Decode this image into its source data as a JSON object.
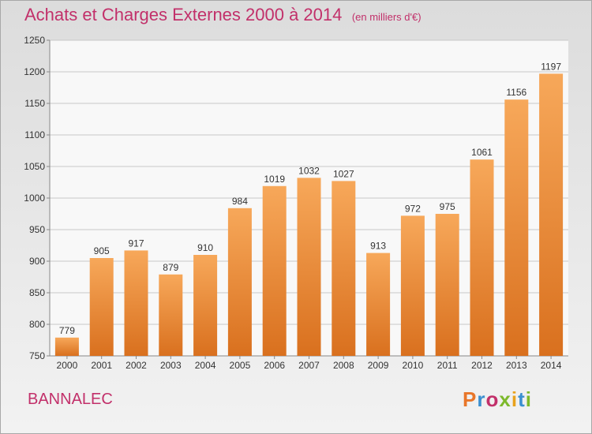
{
  "title": "Achats et Charges Externes 2000 à 2014",
  "subtitle": "(en milliers d'€)",
  "commune": "BANNALEC",
  "logo": {
    "text": "Proxiti",
    "colors": [
      "#e8762a",
      "#3a8fd0",
      "#c2306a",
      "#7db92b",
      "#e8a21d",
      "#3a8fd0",
      "#7db92b"
    ]
  },
  "colors": {
    "bar_top": "#f7a85a",
    "bar_bottom": "#d9701e",
    "title": "#c2306a",
    "grid": "#c8c8c8"
  },
  "chart_data": {
    "type": "bar",
    "categories": [
      "2000",
      "2001",
      "2002",
      "2003",
      "2004",
      "2005",
      "2006",
      "2007",
      "2008",
      "2009",
      "2010",
      "2011",
      "2012",
      "2013",
      "2014"
    ],
    "values": [
      779,
      905,
      917,
      879,
      910,
      984,
      1019,
      1032,
      1027,
      913,
      972,
      975,
      1061,
      1156,
      1197
    ],
    "title": "Achats et Charges Externes 2000 à 2014",
    "xlabel": "",
    "ylabel": "",
    "ylim": [
      750,
      1250
    ],
    "yticks": [
      750,
      800,
      850,
      900,
      950,
      1000,
      1050,
      1100,
      1150,
      1200,
      1250
    ],
    "grid": true
  }
}
